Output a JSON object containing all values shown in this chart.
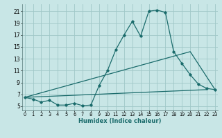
{
  "xlabel": "Humidex (Indice chaleur)",
  "x_ticks": [
    0,
    1,
    2,
    3,
    4,
    5,
    6,
    7,
    8,
    9,
    10,
    11,
    12,
    13,
    14,
    15,
    16,
    17,
    18,
    19,
    20,
    21,
    22,
    23
  ],
  "y_ticks": [
    5,
    7,
    9,
    11,
    13,
    15,
    17,
    19,
    21
  ],
  "xlim": [
    -0.3,
    23.3
  ],
  "ylim": [
    4.3,
    22.2
  ],
  "bg_color": "#c8e6e6",
  "grid_color": "#a0c8c8",
  "line_color": "#1a6b6b",
  "curve1_x": [
    0,
    1,
    2,
    3,
    4,
    5,
    6,
    7,
    8,
    9,
    10,
    11,
    12,
    13,
    14,
    15,
    16,
    17,
    18,
    19,
    20,
    21,
    22,
    23
  ],
  "curve1_y": [
    6.5,
    6.2,
    5.7,
    6.0,
    5.2,
    5.2,
    5.5,
    5.1,
    5.2,
    8.5,
    11.0,
    14.5,
    17.0,
    19.3,
    16.8,
    21.0,
    21.2,
    20.8,
    14.2,
    12.2,
    10.3,
    8.7,
    8.0,
    7.8
  ],
  "curve2_x": [
    0,
    22
  ],
  "curve2_y": [
    6.5,
    7.8
  ],
  "curve3_x": [
    0,
    20,
    23
  ],
  "curve3_y": [
    6.5,
    14.2,
    7.8
  ]
}
